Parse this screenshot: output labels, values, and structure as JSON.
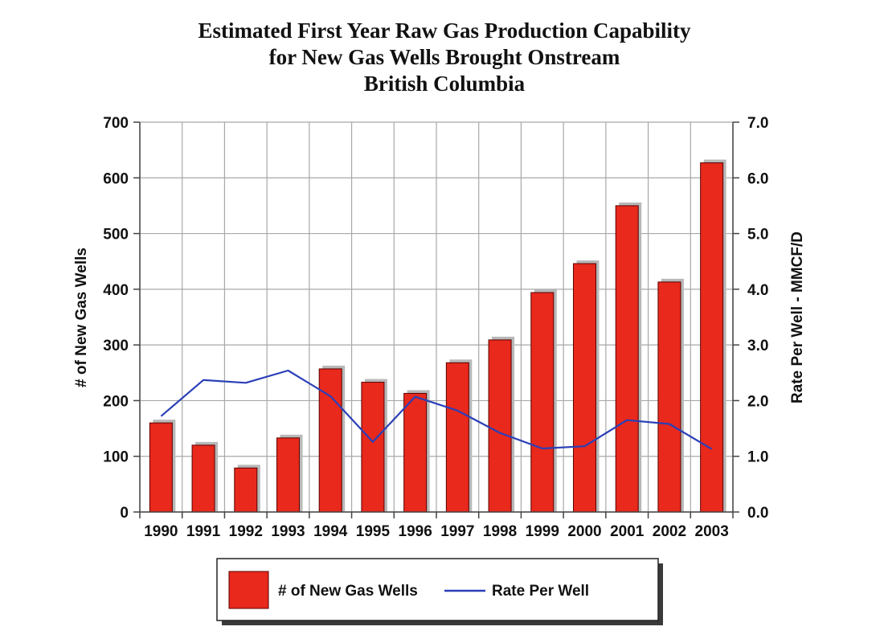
{
  "chart_data": {
    "type": "bar",
    "title": [
      "Estimated First Year Raw Gas Production Capability",
      "for New Gas Wells Brought Onstream",
      "British Columbia"
    ],
    "categories": [
      "1990",
      "1991",
      "1992",
      "1993",
      "1994",
      "1995",
      "1996",
      "1997",
      "1998",
      "1999",
      "2000",
      "2001",
      "2002",
      "2003"
    ],
    "series": [
      {
        "name": "# of New Gas Wells",
        "type": "bar",
        "axis": "left",
        "color": "#e8291c",
        "values": [
          160,
          120,
          79,
          133,
          257,
          233,
          213,
          268,
          309,
          394,
          446,
          550,
          413,
          627
        ]
      },
      {
        "name": "Rate Per Well",
        "type": "line",
        "axis": "right",
        "color": "#2b3fb8",
        "values": [
          1.72,
          2.37,
          2.32,
          2.54,
          2.08,
          1.26,
          2.07,
          1.82,
          1.42,
          1.14,
          1.18,
          1.65,
          1.58,
          1.13
        ]
      }
    ],
    "ylabel": "# of New Gas Wells",
    "y2label": "Rate Per Well - MMCF/D",
    "ylim": [
      0,
      700
    ],
    "y2lim": [
      0,
      7.0
    ],
    "yticks": [
      "0",
      "100",
      "200",
      "300",
      "400",
      "500",
      "600",
      "700"
    ],
    "y2ticks": [
      "0.0",
      "1.0",
      "2.0",
      "3.0",
      "4.0",
      "5.0",
      "6.0",
      "7.0"
    ],
    "grid": true,
    "legend_position": "bottom"
  }
}
